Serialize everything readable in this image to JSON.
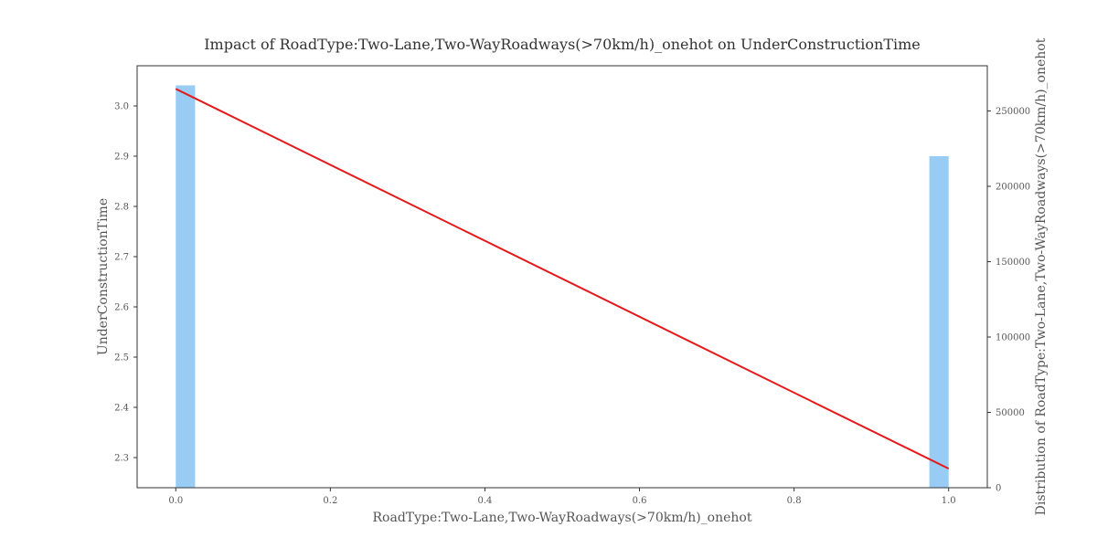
{
  "chart_data": {
    "type": "bar+line",
    "title": "Impact of RoadType:Two-Lane,Two-WayRoadways(>70km/h)_onehot on UnderConstructionTime",
    "xlabel": "RoadType:Two-Lane,Two-WayRoadways(>70km/h)_onehot",
    "ylabel": "UnderConstructionTime",
    "y2label": "Distribution of RoadType:Two-Lane,Two-WayRoadways(>70km/h)_onehot",
    "xlim": [
      -0.05,
      1.05
    ],
    "ylim": [
      2.24,
      3.08
    ],
    "y2lim": [
      0,
      280000
    ],
    "x_ticks": [
      0.0,
      0.2,
      0.4,
      0.6,
      0.8,
      1.0
    ],
    "x_tick_labels": [
      "0.0",
      "0.2",
      "0.4",
      "0.6",
      "0.8",
      "1.0"
    ],
    "y_ticks": [
      2.3,
      2.4,
      2.5,
      2.6,
      2.7,
      2.8,
      2.9,
      3.0
    ],
    "y_tick_labels": [
      "2.3",
      "2.4",
      "2.5",
      "2.6",
      "2.7",
      "2.8",
      "2.9",
      "3.0"
    ],
    "y2_ticks": [
      0,
      50000,
      100000,
      150000,
      200000,
      250000
    ],
    "y2_tick_labels": [
      "0",
      "50000",
      "100000",
      "150000",
      "200000",
      "250000"
    ],
    "histogram": {
      "color": "#99ccf5",
      "bin_width": 0.025,
      "bins": [
        {
          "x_start": 0.0,
          "count": 267000
        },
        {
          "x_start": 0.975,
          "count": 220000
        }
      ]
    },
    "line": {
      "color": "#e31a1c",
      "x": [
        0.0,
        1.0
      ],
      "y": [
        3.034,
        2.278
      ]
    },
    "grid": false,
    "legend": "none"
  }
}
